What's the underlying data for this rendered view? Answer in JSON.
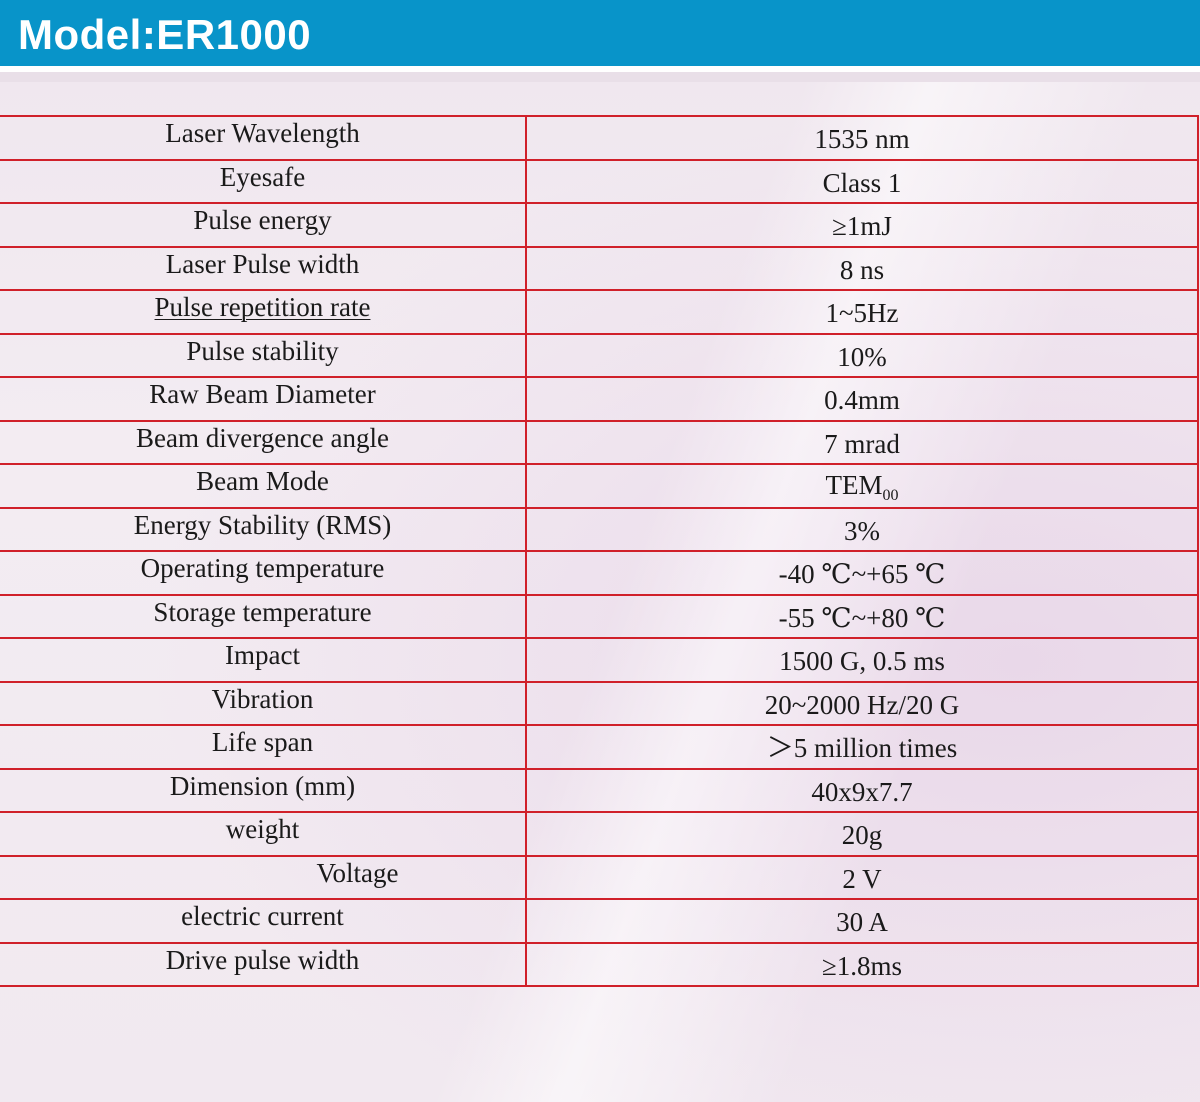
{
  "header": {
    "title": "Model:ER1000"
  },
  "colors": {
    "header_bg": "#0894c9",
    "grid_line": "#d0202a"
  },
  "specs": [
    {
      "param": "Laser Wavelength",
      "value": "1535 nm"
    },
    {
      "param": "Eyesafe",
      "value": "Class 1"
    },
    {
      "param": "Pulse energy",
      "value": "≥1mJ"
    },
    {
      "param": "Laser Pulse width",
      "value": "8 ns"
    },
    {
      "param": "Pulse repetition rate",
      "value": "1~5Hz"
    },
    {
      "param": "Pulse stability",
      "value": "10%"
    },
    {
      "param": "Raw Beam Diameter",
      "value": "0.4mm"
    },
    {
      "param": "Beam divergence angle",
      "value": "7 mrad"
    },
    {
      "param": "Beam Mode",
      "value": "TEM",
      "value_sub": "00"
    },
    {
      "param": "Energy Stability (RMS)",
      "value": "3%"
    },
    {
      "param": "Operating temperature",
      "value": "-40 ℃~+65 ℃"
    },
    {
      "param": "Storage temperature",
      "value": "-55 ℃~+80 ℃"
    },
    {
      "param": "Impact",
      "value": "1500 G, 0.5 ms"
    },
    {
      "param": "Vibration",
      "value": "20~2000 Hz/20 G"
    },
    {
      "param": "Life span",
      "value": "＞5 million times"
    },
    {
      "param": "Dimension (mm)",
      "value": "40x9x7.7"
    },
    {
      "param": "weight",
      "value": "20g"
    },
    {
      "param": "Voltage",
      "value": "2 V"
    },
    {
      "param": "electric current",
      "value": "30 A"
    },
    {
      "param": "Drive pulse width",
      "value": "≥1.8ms"
    }
  ]
}
